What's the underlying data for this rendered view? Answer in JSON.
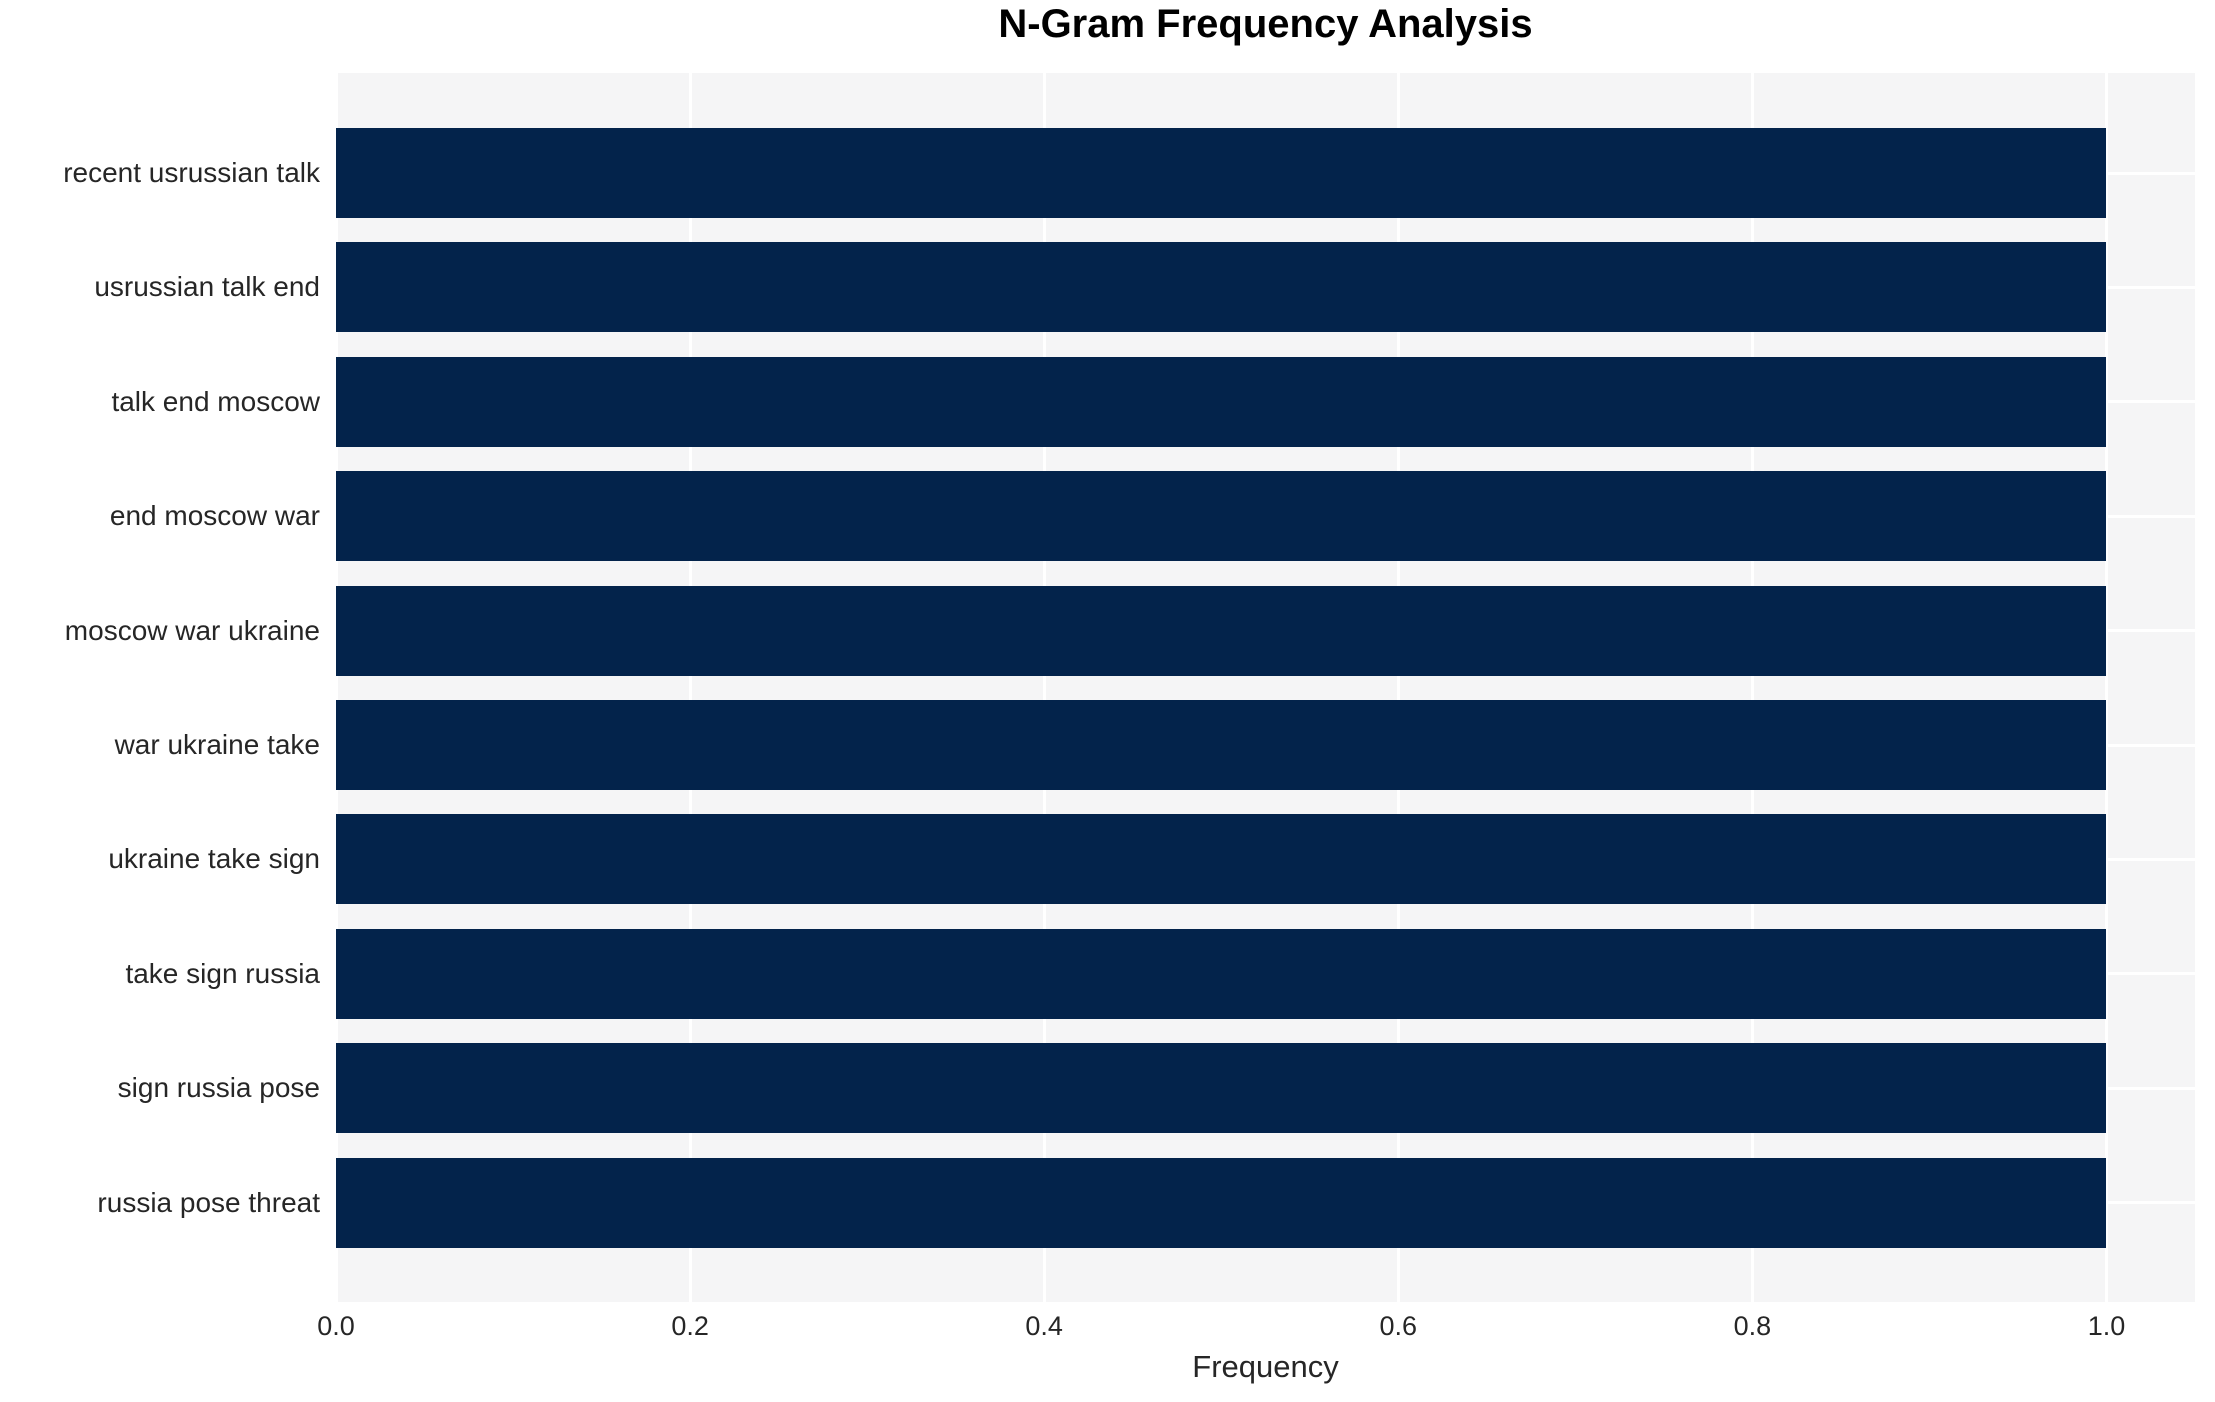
{
  "chart_data": {
    "type": "bar",
    "orientation": "horizontal",
    "title": "N-Gram Frequency Analysis",
    "xlabel": "Frequency",
    "ylabel": "",
    "categories": [
      "recent usrussian talk",
      "usrussian talk end",
      "talk end moscow",
      "end moscow war",
      "moscow war ukraine",
      "war ukraine take",
      "ukraine take sign",
      "take sign russia",
      "sign russia pose",
      "russia pose threat"
    ],
    "values": [
      1.0,
      1.0,
      1.0,
      1.0,
      1.0,
      1.0,
      1.0,
      1.0,
      1.0,
      1.0
    ],
    "xticks": [
      0.0,
      0.2,
      0.4,
      0.6,
      0.8,
      1.0
    ],
    "xlim": [
      0,
      1.05
    ],
    "grid": true,
    "legend_position": "none",
    "colors": {
      "bar": "#03234B",
      "plot_background": "#F5F5F6",
      "gridline": "#FFFFFF",
      "figure_background": "#FFFFFF",
      "tick_text": "#262626",
      "title_text": "#000000"
    }
  }
}
